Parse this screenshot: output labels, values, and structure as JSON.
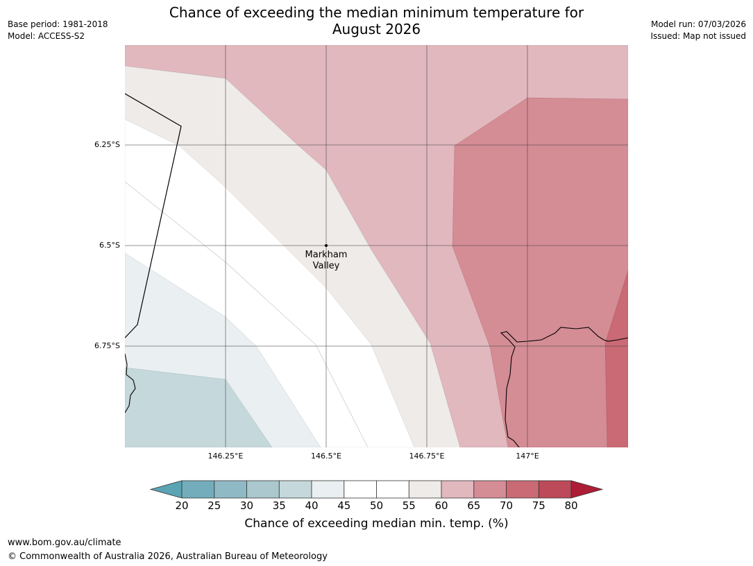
{
  "header": {
    "base_period": "Base period: 1981-2018",
    "model": "Model: ACCESS-S2",
    "model_run": "Model run: 07/03/2026",
    "issued": "Issued: Map not issued",
    "title_line1": "Chance of exceeding the median minimum temperature for",
    "title_line2": "August 2026"
  },
  "map": {
    "lat_labels": [
      "6.25°S",
      "6.5°S",
      "6.75°S"
    ],
    "lon_labels": [
      "146.25°E",
      "146.5°E",
      "146.75°E",
      "147°E"
    ],
    "place_name_line1": "Markham",
    "place_name_line2": "Valley"
  },
  "colorbar": {
    "ticks": [
      "20",
      "25",
      "30",
      "35",
      "40",
      "45",
      "50",
      "55",
      "60",
      "65",
      "70",
      "75",
      "80"
    ],
    "label": "Chance of exceeding median min. temp. (%)",
    "colors": [
      "#5aa4b4",
      "#73adbb",
      "#8fbac5",
      "#aac8ce",
      "#c5d8dc",
      "#eaeff1",
      "#ffffff",
      "#ffffff",
      "#eeebe9",
      "#e1b8be",
      "#d48c95",
      "#c96a75",
      "#bc4a58",
      "#ad1d35"
    ]
  },
  "footer": {
    "url": "www.bom.gov.au/climate",
    "copyright": "© Commonwealth of Australia 2026, Australian Bureau of Meteorology"
  }
}
